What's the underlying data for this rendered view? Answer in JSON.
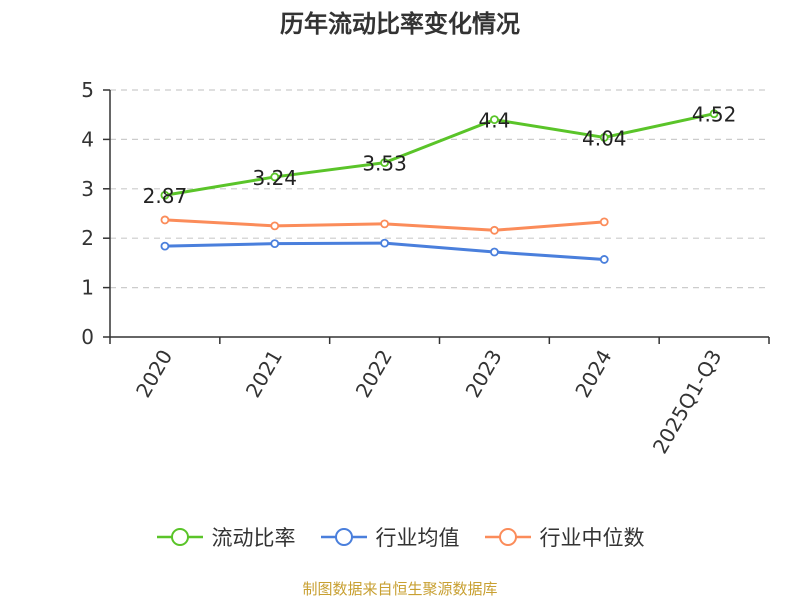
{
  "title": "历年流动比率变化情况",
  "source": "制图数据来自恒生聚源数据库",
  "chart_data": {
    "type": "line",
    "categories": [
      "2020",
      "2021",
      "2022",
      "2023",
      "2024",
      "2025Q1-Q3"
    ],
    "ylim": [
      0,
      5
    ],
    "yticks": [
      0,
      1,
      2,
      3,
      4,
      5
    ],
    "grid": true,
    "legend_position": "bottom",
    "series": [
      {
        "name": "流动比率",
        "color": "#5ac429",
        "values": [
          2.87,
          3.24,
          3.53,
          4.4,
          4.04,
          4.52
        ],
        "labels": [
          "2.87",
          "3.24",
          "3.53",
          "4.4",
          "4.04",
          "4.52"
        ],
        "show_labels": true
      },
      {
        "name": "行业均值",
        "color": "#4a7fdc",
        "values": [
          1.84,
          1.89,
          1.9,
          1.72,
          1.57,
          null
        ],
        "show_labels": false
      },
      {
        "name": "行业中位数",
        "color": "#fb8c5a",
        "values": [
          2.37,
          2.25,
          2.29,
          2.16,
          2.33,
          null
        ],
        "show_labels": false
      }
    ]
  }
}
